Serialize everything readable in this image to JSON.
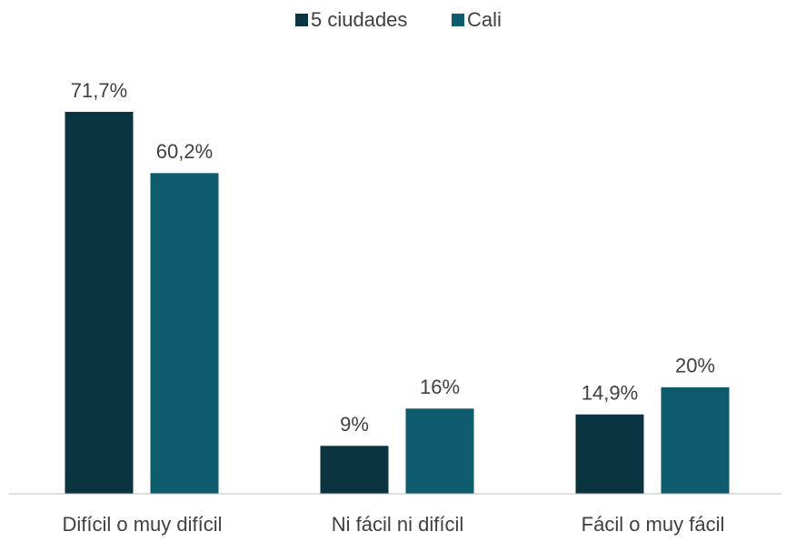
{
  "chart_data": {
    "type": "bar",
    "categories": [
      "Difícil o muy difícil",
      "Ni fácil ni difícil",
      "Fácil o muy fácil"
    ],
    "series": [
      {
        "name": "5 ciudades",
        "color": "#0b3441",
        "values": [
          71.7,
          9,
          14.9
        ],
        "value_labels": [
          "71,7%",
          "9%",
          "14,9%"
        ]
      },
      {
        "name": "Cali",
        "color": "#0e5b6d",
        "values": [
          60.2,
          16,
          20
        ],
        "value_labels": [
          "60,2%",
          "16%",
          "20%"
        ]
      }
    ],
    "legend": "top"
  }
}
